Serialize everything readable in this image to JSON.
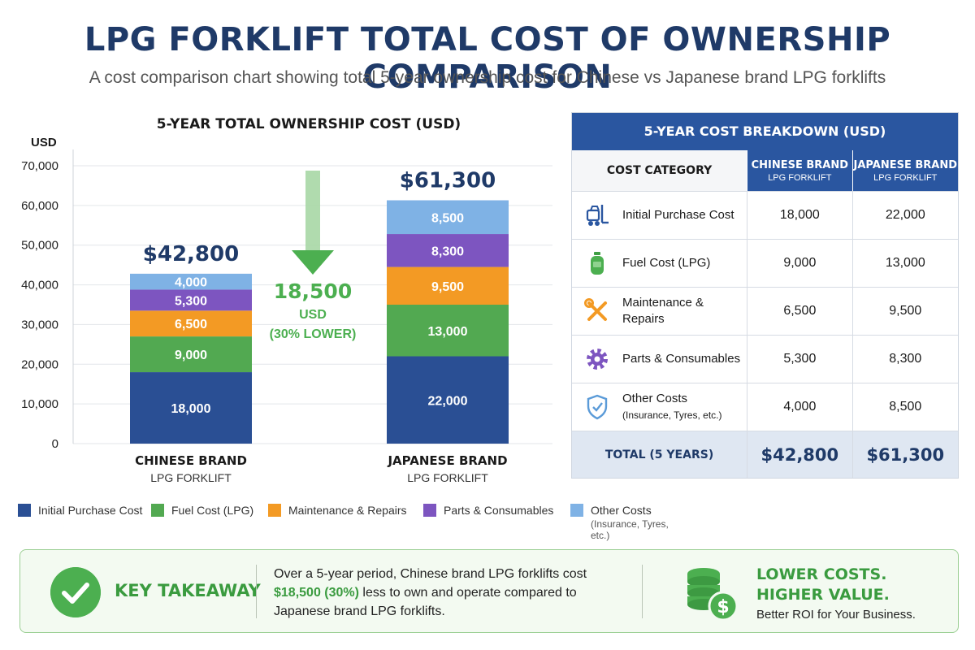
{
  "title": "LPG FORKLIFT TOTAL COST OF OWNERSHIP COMPARISON",
  "subtitle": "A cost comparison chart showing total 5-year ownership cost for Chinese vs Japanese brand LPG forklifts",
  "chart_data": {
    "type": "bar",
    "stacked": true,
    "title": "5-YEAR TOTAL OWNERSHIP COST (USD)",
    "ylabel": "USD",
    "xlabel": "",
    "ylim": [
      0,
      70000
    ],
    "yticks": [
      0,
      10000,
      20000,
      30000,
      40000,
      50000,
      60000,
      70000
    ],
    "ytick_labels": [
      "0",
      "10,000",
      "20,000",
      "30,000",
      "40,000",
      "50,000",
      "60,000",
      "70,000"
    ],
    "grid": true,
    "legend_position": "bottom",
    "categories": [
      {
        "name": "CHINESE BRAND",
        "sub": "LPG FORKLIFT"
      },
      {
        "name": "JAPANESE BRAND",
        "sub": "LPG FORKLIFT"
      }
    ],
    "series": [
      {
        "name": "Initial Purchase Cost",
        "color": "#2a4f94",
        "values": [
          18000,
          22000
        ],
        "labels": [
          "18,000",
          "22,000"
        ]
      },
      {
        "name": "Fuel Cost (LPG)",
        "color": "#52a951",
        "values": [
          9000,
          13000
        ],
        "labels": [
          "9,000",
          "13,000"
        ]
      },
      {
        "name": "Maintenance & Repairs",
        "color": "#f39a24",
        "values": [
          6500,
          9500
        ],
        "labels": [
          "6,500",
          "9,500"
        ]
      },
      {
        "name": "Parts & Consumables",
        "color": "#7d55c0",
        "values": [
          5300,
          8300
        ],
        "labels": [
          "5,300",
          "8,300"
        ]
      },
      {
        "name": "Other Costs",
        "note": "(Insurance, Tyres, etc.)",
        "color": "#7fb2e5",
        "values": [
          4000,
          8500
        ],
        "labels": [
          "4,000",
          "8,500"
        ]
      }
    ],
    "totals": [
      42800,
      61300
    ],
    "total_labels": [
      "$42,800",
      "$61,300"
    ],
    "difference": {
      "value": 18500,
      "label": "18,500",
      "unit": "USD",
      "note": "(30% LOWER)",
      "color": "#4caf50"
    }
  },
  "table": {
    "title": "5-YEAR COST BREAKDOWN (USD)",
    "col_category": "COST CATEGORY",
    "col_chinese": {
      "main": "CHINESE BRAND",
      "sub": "LPG FORKLIFT"
    },
    "col_japanese": {
      "main": "JAPANESE BRAND",
      "sub": "LPG FORKLIFT"
    },
    "rows": [
      {
        "label": "Initial Purchase Cost",
        "note": "",
        "icon": "forklift-icon",
        "chinese": "18,000",
        "japanese": "22,000"
      },
      {
        "label": "Fuel Cost (LPG)",
        "note": "",
        "icon": "gas-cylinder-icon",
        "chinese": "9,000",
        "japanese": "13,000"
      },
      {
        "label": "Maintenance & Repairs",
        "note": "",
        "icon": "tools-icon",
        "chinese": "6,500",
        "japanese": "9,500"
      },
      {
        "label": "Parts & Consumables",
        "note": "",
        "icon": "gear-icon",
        "chinese": "5,300",
        "japanese": "8,300"
      },
      {
        "label": "Other Costs",
        "note": "(Insurance, Tyres, etc.)",
        "icon": "shield-icon",
        "chinese": "4,000",
        "japanese": "8,500"
      }
    ],
    "total": {
      "label": "TOTAL (5 YEARS)",
      "chinese": "$42,800",
      "japanese": "$61,300"
    }
  },
  "takeaway": {
    "label": "KEY TAKEAWAY",
    "text_before": "Over a 5-year period, Chinese brand LPG forklifts cost",
    "highlight": "$18,500 (30%)",
    "text_after": " less to own and operate compared to Japanese brand LPG forklifts.",
    "slogan_line1": "LOWER COSTS.",
    "slogan_line2": "HIGHER VALUE.",
    "roi": "Better ROI for Your Business."
  },
  "colors": {
    "navy": "#1f3a68",
    "blue": "#2a56a0",
    "green": "#4caf50"
  }
}
